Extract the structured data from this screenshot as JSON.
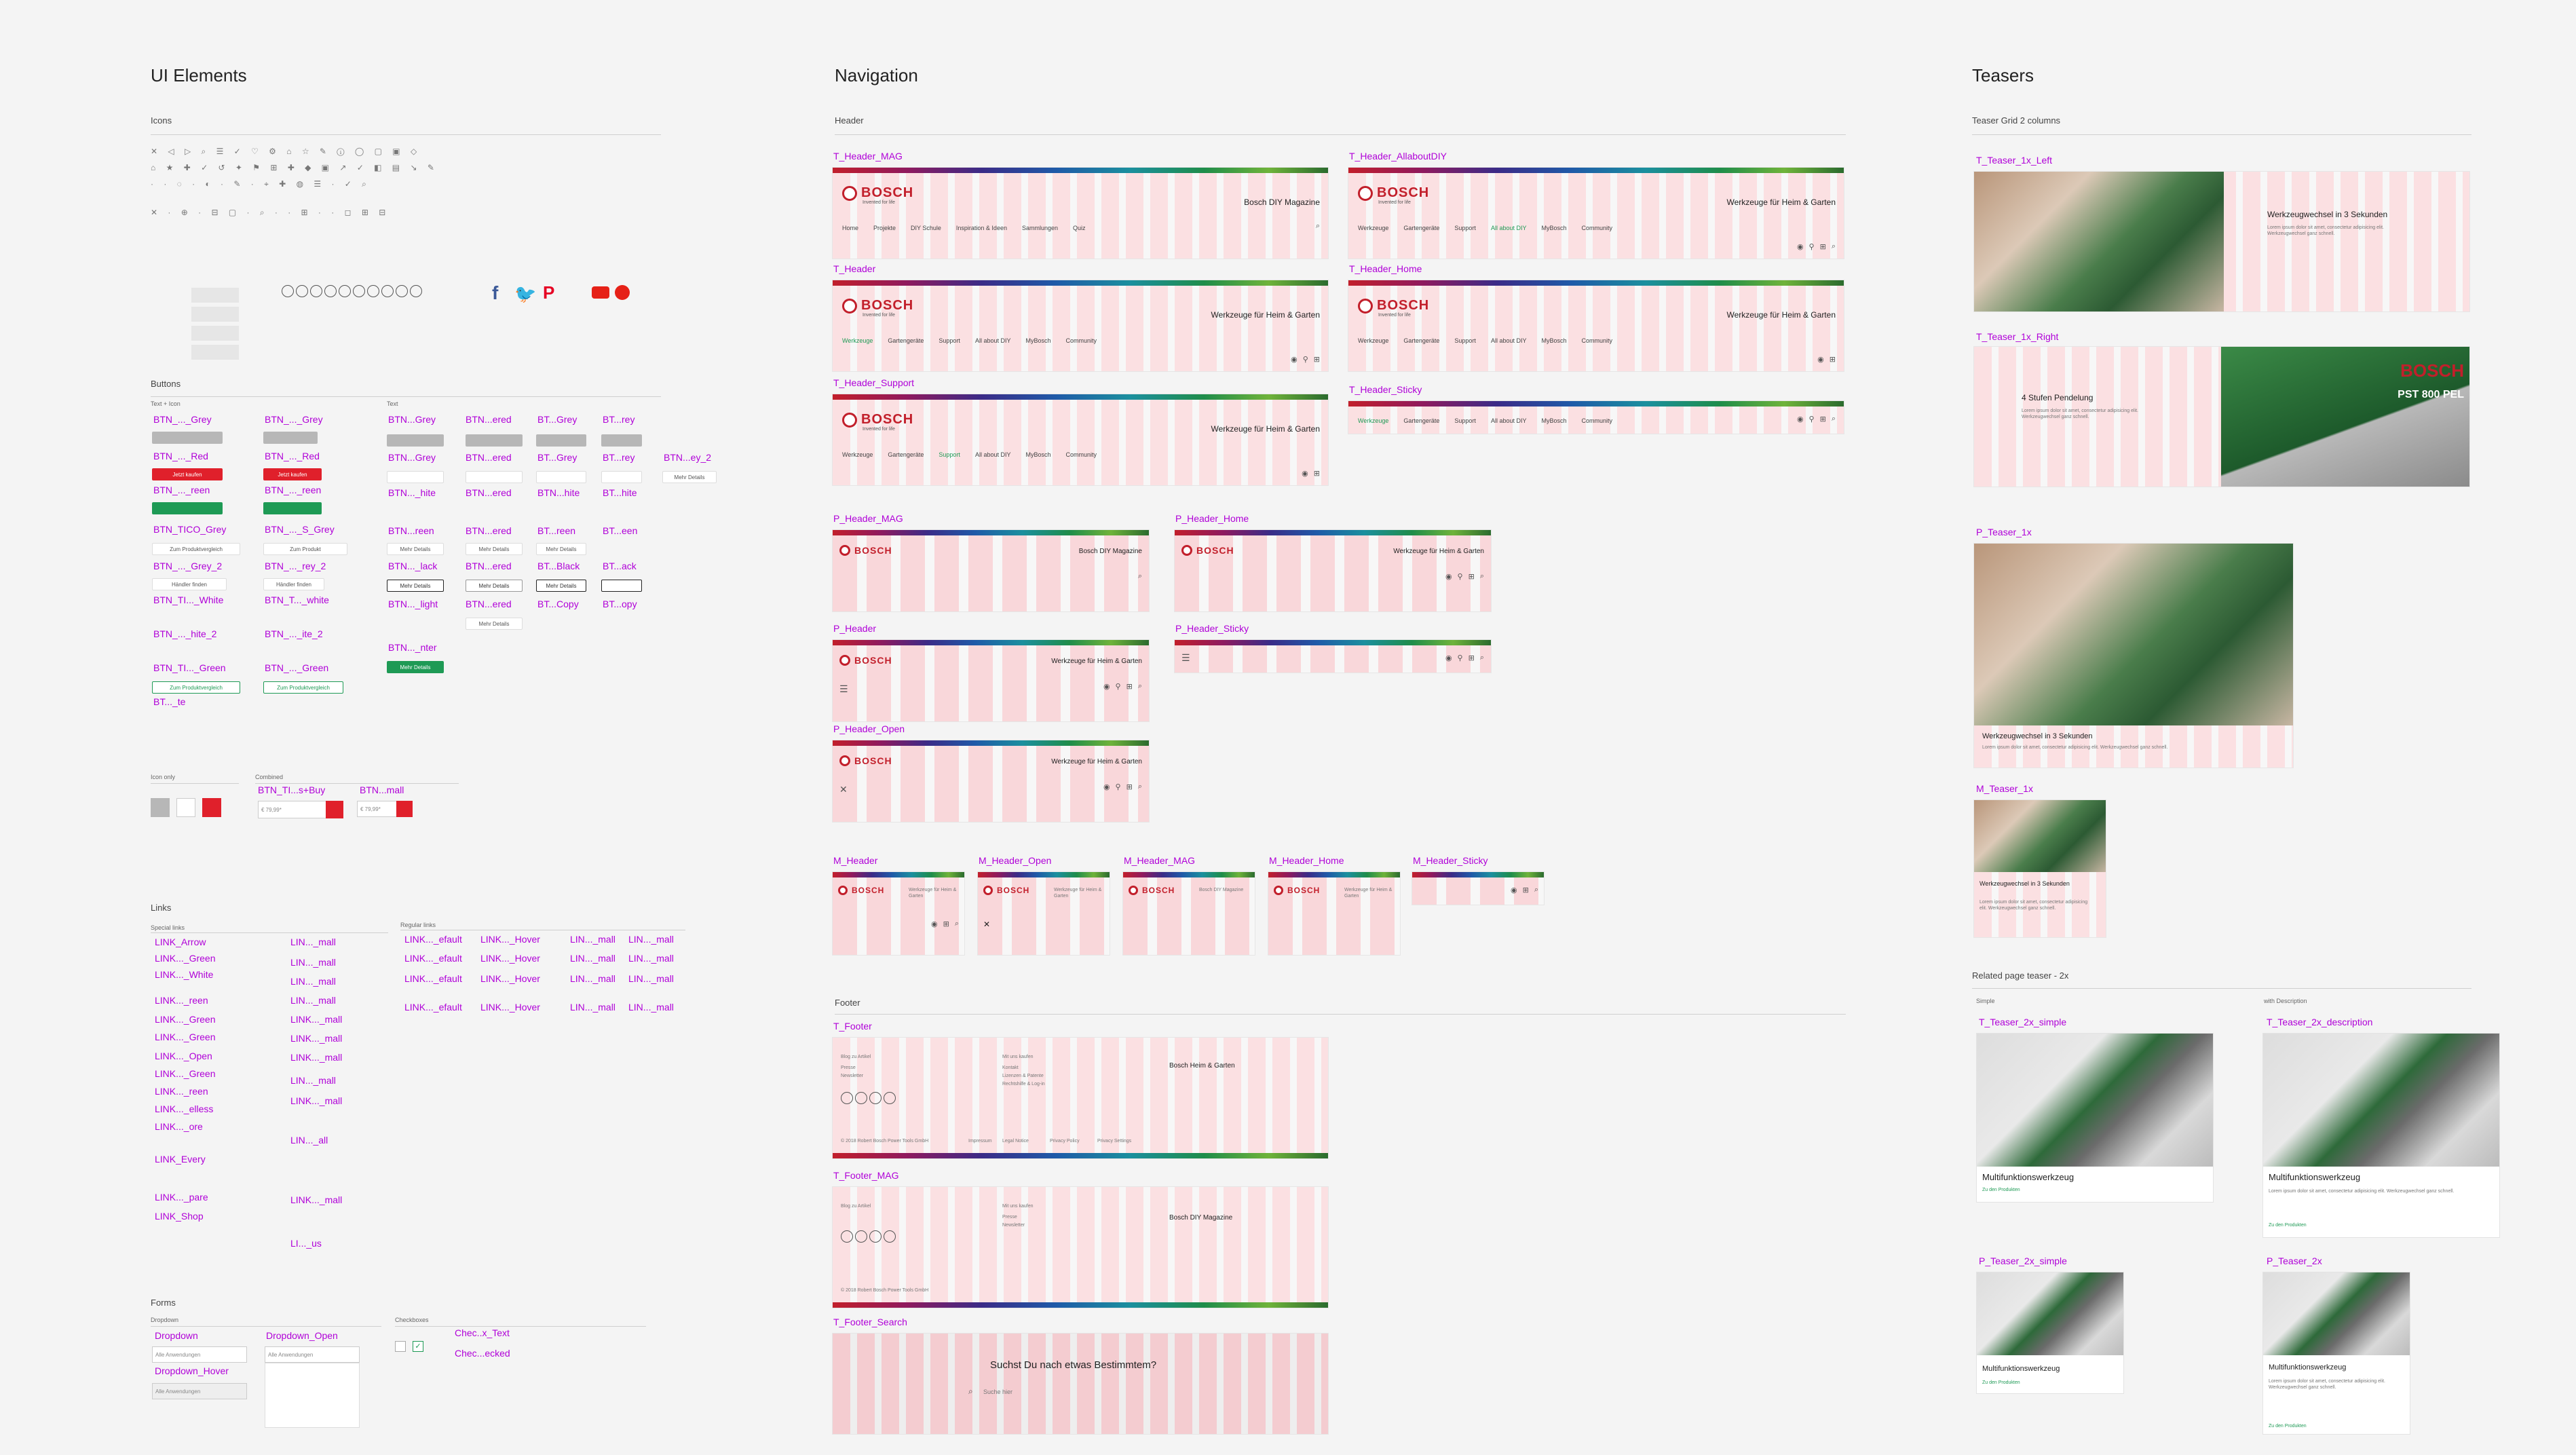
{
  "columns": {
    "ui_elements": "UI Elements",
    "navigation": "Navigation",
    "teasers": "Teasers"
  },
  "ui": {
    "icons_label": "Icons",
    "buttons_label": "Buttons",
    "text_icon_label": "Text + Icon",
    "text_label": "Text",
    "links_label": "Links",
    "special_links_label": "Special links",
    "regular_links_label": "Regular links",
    "forms_label": "Forms",
    "dropdown_label": "Dropdown",
    "checkboxes_label": "Checkboxes",
    "icon_only_label": "Icon only",
    "combined_label": "Combined",
    "btn_labels_col1": [
      "BTN_..._Grey",
      "BTN_..._Red",
      "BTN_..._reen",
      "BTN_TICO_Grey",
      "BTN_..._Grey_2",
      "BTN_TI..._White",
      "BTN_..._hite_2",
      "BTN_TI..._Green",
      "BT..._te"
    ],
    "btn_labels_col2": [
      "BTN_..._Grey",
      "BTN_..._Red",
      "BTN_..._reen",
      "BTN_..._S_Grey",
      "BTN_..._rey_2",
      "BTN_T..._white",
      "BTN_..._ite_2",
      "BTN_..._Green"
    ],
    "btn_labels_col3": [
      "BTN...Grey",
      "BTN...Grey",
      "BTN..._hite",
      "BTN...reen",
      "BTN..._lack",
      "BTN..._light",
      "BTN..._nter"
    ],
    "btn_labels_col4": [
      "BTN...ered",
      "BTN...ered",
      "BTN...ered",
      "BTN...ered",
      "BTN...ered",
      "BTN...ered"
    ],
    "btn_labels_col5": [
      "BT...Grey",
      "BT...Grey",
      "BTN...hite",
      "BT...reen",
      "BT...Black",
      "BT...Copy"
    ],
    "btn_labels_col6": [
      "BT...rey",
      "BT...rey",
      "BT...hite",
      "BT...een",
      "BT...ack",
      "BT...opy"
    ],
    "btn_label_extra": "BTN...ey_2",
    "btn_combined": [
      "BTN_TI...s+Buy",
      "BTN...mall"
    ],
    "btn_small_text": [
      "Jetzt kaufen",
      "Zum Produkt",
      "Mehr Details",
      "Zum Produktvergleich",
      "Händler finden"
    ],
    "links_col1": [
      "LINK_Arrow",
      "LINK..._Green",
      "LINK..._White",
      "LINK..._reen",
      "LINK..._Green",
      "LINK..._Green",
      "LINK..._Open",
      "LINK..._Green",
      "LINK..._reen",
      "LINK..._elless",
      "LINK..._ore",
      "LINK_Every",
      "LINK..._pare",
      "LINK_Shop"
    ],
    "links_col2": [
      "LIN..._mall",
      "LIN..._mall",
      "LIN..._mall",
      "LIN..._mall",
      "LINK..._mall",
      "LINK..._mall",
      "LINK..._mall",
      "LIN..._mall",
      "LINK..._mall",
      "LIN..._all",
      "LINK..._mall",
      "LI..._us"
    ],
    "links_col3": [
      "LINK..._efault",
      "LINK..._efault",
      "LINK..._efault",
      "LINK..._efault"
    ],
    "links_col4": [
      "LINK..._Hover",
      "LINK..._Hover",
      "LINK..._Hover",
      "LINK..._Hover"
    ],
    "links_col5": [
      "LIN..._mall",
      "LIN..._mall",
      "LIN..._mall",
      "LIN..._mall"
    ],
    "links_col6": [
      "LIN..._mall",
      "LIN..._mall",
      "LIN..._mall",
      "LIN..._mall"
    ],
    "form_labels": [
      "Dropdown",
      "Dropdown_Hover",
      "Dropdown_Open",
      "Chec..x_Text",
      "Chec...ecked"
    ],
    "dropdown_value": "Alle Anwendungen"
  },
  "nav": {
    "header_label": "Header",
    "footer_label": "Footer",
    "brand": "BOSCH",
    "brand_sub": "Invented for life",
    "title_home": "Werkzeuge für Heim & Garten",
    "title_mag": "Bosch DIY Magazine",
    "title_mobile": "Werkzeuge für Heim & Garten",
    "nav_items": [
      "Werkzeuge",
      "Gartengeräte",
      "Support",
      "All about DIY",
      "MyBosch",
      "Community"
    ],
    "mag_nav_items": [
      "Home",
      "Projekte",
      "DIY Schule",
      "Inspiration & Ideen",
      "Sammlungen",
      "Quiz"
    ],
    "frames": [
      "T_Header_MAG",
      "T_Header",
      "T_Header_Support",
      "T_Header_AllaboutDIY",
      "T_Header_Home",
      "T_Header_Sticky",
      "P_Header_MAG",
      "P_Header_Home",
      "P_Header",
      "P_Header_Sticky",
      "P_Header_Open",
      "M_Header",
      "M_Header_Open",
      "M_Header_MAG",
      "M_Header_Home",
      "M_Header_Sticky",
      "T_Footer",
      "T_Footer_MAG",
      "T_Footer_Search"
    ],
    "footer_search_question": "Suchst Du nach etwas Bestimmtem?",
    "footer_search_placeholder": "Suche hier",
    "footer_copyright": "© 2018 Robert Bosch Power Tools GmbH",
    "footer_links": [
      "Impressum",
      "Legal Notice",
      "Privacy Policy",
      "Privacy Settings"
    ],
    "footer_col_titles": [
      "Blog zu Artikel",
      "Mit uns kaufen",
      "Bosch Heim & Garten"
    ],
    "footer_items": [
      "Presse",
      "Newsletter",
      "Kontakt",
      "Lizenzen & Patente",
      "Rechtshilfe & Log-in"
    ],
    "footer_mag_title": "Bosch DIY Magazine"
  },
  "teasers": {
    "grid_label": "Teaser Grid 2 columns",
    "related_label": "Related page teaser - 2x",
    "simple_label": "Simple",
    "with_desc_label": "with Description",
    "frames": [
      "T_Teaser_1x_Left",
      "T_Teaser_1x_Right",
      "P_Teaser_1x",
      "M_Teaser_1x",
      "T_Teaser_2x_simple",
      "T_Teaser_2x_description",
      "P_Teaser_2x_simple",
      "P_Teaser_2x"
    ],
    "left_headline": "Werkzeugwechsel in 3 Sekunden",
    "right_headline": "4 Stufen Pendelung",
    "p_headline": "Werkzeugwechsel in 3 Sekunden",
    "m_headline": "Werkzeugwechsel in 3 Sekunden",
    "card_title": "Multifunktionswerkzeug",
    "card_link": "Zu den Produkten",
    "product_name": "PST 800 PEL",
    "body_copy": "Lorem ipsum dolor sit amet, consectetur adipisicing elit. Werkzeugwechsel ganz schnell."
  }
}
